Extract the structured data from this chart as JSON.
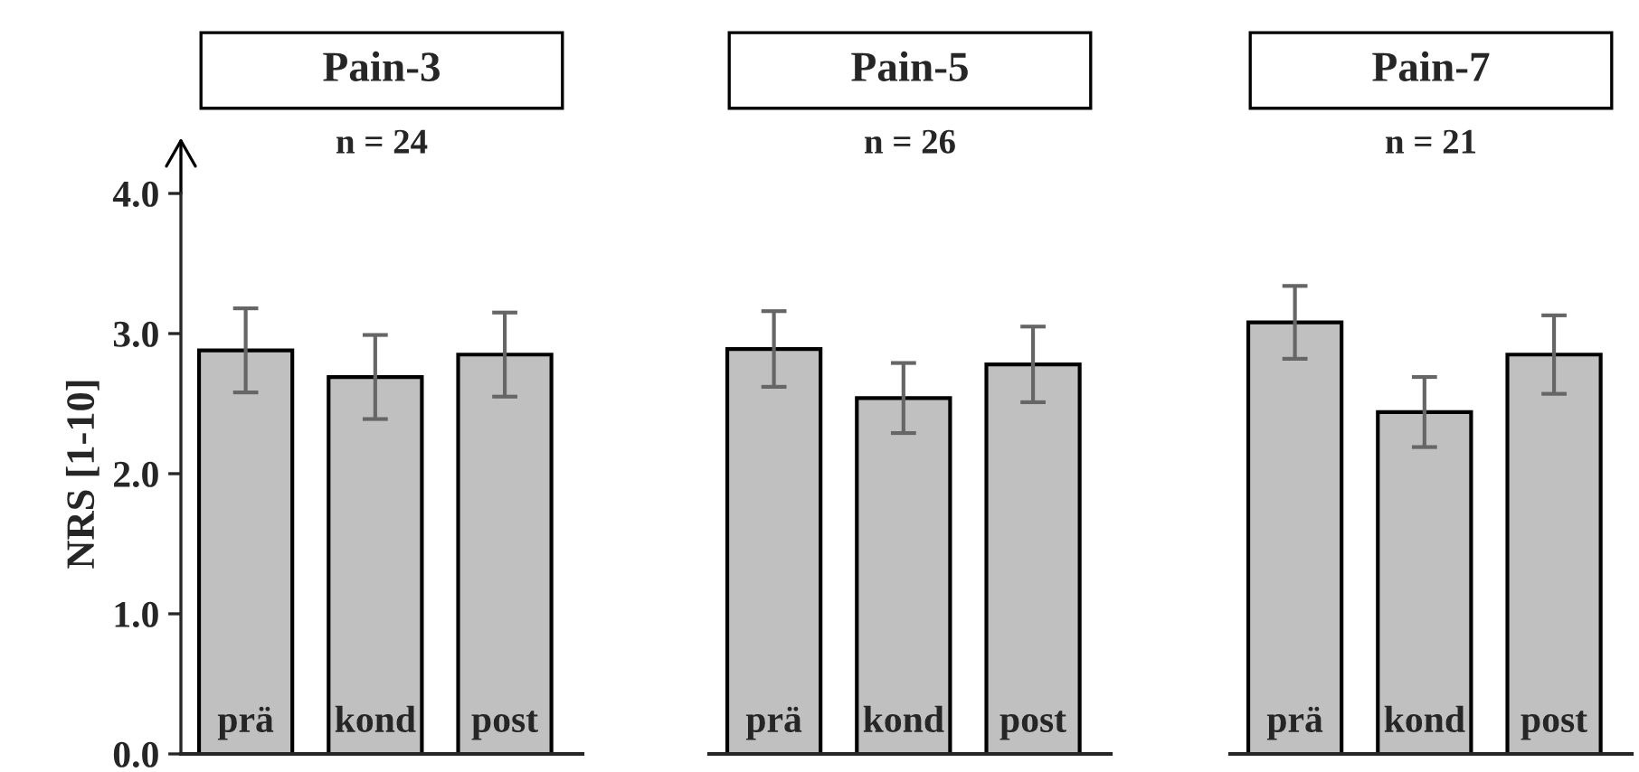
{
  "chart_data": [
    {
      "type": "bar",
      "title": "Pain-3",
      "subtitle": "n = 24",
      "ylabel": "NRS [1-10]",
      "categories": [
        "prä",
        "kond",
        "post"
      ],
      "values": [
        2.88,
        2.69,
        2.85
      ],
      "errors": [
        0.3,
        0.3,
        0.3
      ],
      "color": "#c0c0c0",
      "ylim": [
        0,
        4
      ],
      "yticks": [
        {
          "value": 0,
          "label": "0.0"
        },
        {
          "value": 1,
          "label": "1.0"
        },
        {
          "value": 2,
          "label": "2.0"
        },
        {
          "value": 3,
          "label": "3.0"
        },
        {
          "value": 4,
          "label": "4.0"
        }
      ]
    },
    {
      "type": "bar",
      "title": "Pain-5",
      "subtitle": "n = 26",
      "categories": [
        "prä",
        "kond",
        "post"
      ],
      "values": [
        2.89,
        2.54,
        2.78
      ],
      "errors": [
        0.27,
        0.25,
        0.27
      ],
      "color": "#c0c0c0",
      "ylim": [
        0,
        4
      ],
      "tick_labels": "x"
    },
    {
      "type": "bar",
      "title": "Pain-7",
      "subtitle": "n = 21",
      "categories": [
        "prä",
        "kond",
        "post"
      ],
      "values": [
        3.08,
        2.44,
        2.85
      ],
      "errors": [
        0.26,
        0.25,
        0.28
      ],
      "color": "#c0c0c0",
      "ylim": [
        0,
        4
      ],
      "tick_labels": "x"
    }
  ]
}
